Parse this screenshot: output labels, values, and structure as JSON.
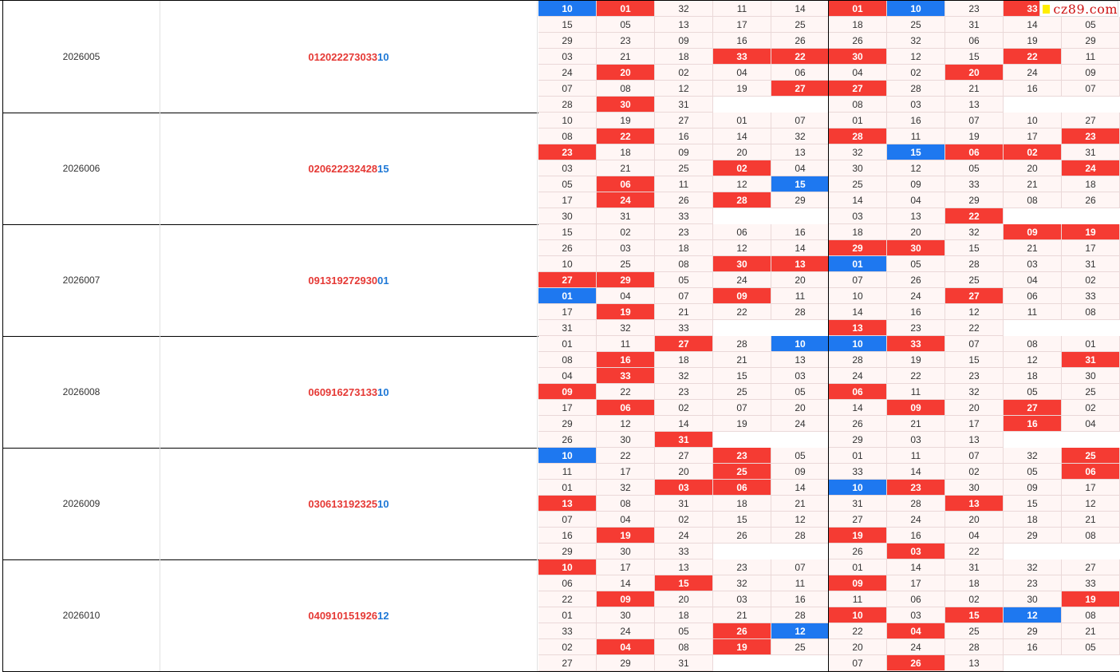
{
  "watermark": {
    "mark_color": "#ffee00",
    "text": "cz89.com"
  },
  "colors": {
    "red": "#f53b33",
    "blue": "#1e78f0",
    "cell_bg": "#fff6f5"
  },
  "rows": [
    {
      "period": "2026005",
      "red_nums": [
        "01",
        "20",
        "22",
        "27",
        "30",
        "33"
      ],
      "blue_num": "10",
      "groups": [
        {
          "cols": [
            [
              "10",
              "15",
              "29",
              "03",
              "24",
              "07",
              "28"
            ],
            [
              "01",
              "05",
              "23",
              "21",
              "20",
              "08",
              "30"
            ],
            [
              "32",
              "13",
              "09",
              "18",
              "02",
              "12",
              "31"
            ],
            [
              "11",
              "17",
              "16",
              "33",
              "04",
              "19",
              ""
            ],
            [
              "14",
              "25",
              "26",
              "22",
              "06",
              "27",
              ""
            ]
          ]
        },
        {
          "cols": [
            [
              "01",
              "18",
              "26",
              "30",
              "04",
              "27",
              "08"
            ],
            [
              "10",
              "25",
              "32",
              "12",
              "02",
              "28",
              "03"
            ],
            [
              "23",
              "31",
              "06",
              "15",
              "20",
              "21",
              "13"
            ],
            [
              "33",
              "14",
              "19",
              "22",
              "24",
              "16",
              ""
            ],
            [
              "",
              "05",
              "29",
              "11",
              "09",
              "07",
              ""
            ]
          ]
        }
      ]
    },
    {
      "period": "2026006",
      "red_nums": [
        "02",
        "06",
        "22",
        "23",
        "24",
        "28"
      ],
      "blue_num": "15",
      "groups": [
        {
          "cols": [
            [
              "10",
              "08",
              "23",
              "03",
              "05",
              "17",
              "30"
            ],
            [
              "19",
              "22",
              "18",
              "21",
              "06",
              "24",
              "31"
            ],
            [
              "27",
              "16",
              "09",
              "25",
              "11",
              "26",
              "33"
            ],
            [
              "01",
              "14",
              "20",
              "02",
              "12",
              "28",
              ""
            ],
            [
              "07",
              "32",
              "13",
              "04",
              "15",
              "29",
              ""
            ]
          ]
        },
        {
          "cols": [
            [
              "01",
              "28",
              "32",
              "30",
              "25",
              "14",
              "03"
            ],
            [
              "16",
              "11",
              "15",
              "12",
              "09",
              "04",
              "13"
            ],
            [
              "07",
              "19",
              "06",
              "05",
              "33",
              "29",
              "22"
            ],
            [
              "10",
              "17",
              "02",
              "20",
              "21",
              "08",
              ""
            ],
            [
              "27",
              "23",
              "31",
              "24",
              "18",
              "26",
              ""
            ]
          ]
        }
      ]
    },
    {
      "period": "2026007",
      "red_nums": [
        "09",
        "13",
        "19",
        "27",
        "29",
        "30"
      ],
      "blue_num": "01",
      "groups": [
        {
          "cols": [
            [
              "15",
              "26",
              "10",
              "27",
              "01",
              "17",
              "31"
            ],
            [
              "02",
              "03",
              "25",
              "29",
              "04",
              "19",
              "32"
            ],
            [
              "23",
              "18",
              "08",
              "05",
              "07",
              "21",
              "33"
            ],
            [
              "06",
              "12",
              "30",
              "24",
              "09",
              "22",
              ""
            ],
            [
              "16",
              "14",
              "13",
              "20",
              "11",
              "28",
              ""
            ]
          ]
        },
        {
          "cols": [
            [
              "18",
              "29",
              "01",
              "07",
              "10",
              "14",
              "13"
            ],
            [
              "20",
              "30",
              "05",
              "26",
              "24",
              "16",
              "23"
            ],
            [
              "32",
              "15",
              "28",
              "25",
              "27",
              "12",
              "22"
            ],
            [
              "09",
              "21",
              "03",
              "04",
              "06",
              "11",
              ""
            ],
            [
              "19",
              "17",
              "31",
              "02",
              "33",
              "08",
              ""
            ]
          ]
        }
      ]
    },
    {
      "period": "2026008",
      "red_nums": [
        "06",
        "09",
        "16",
        "27",
        "31",
        "33"
      ],
      "blue_num": "10",
      "groups": [
        {
          "cols": [
            [
              "01",
              "08",
              "04",
              "09",
              "17",
              "29",
              "26"
            ],
            [
              "11",
              "16",
              "33",
              "22",
              "06",
              "12",
              "30"
            ],
            [
              "27",
              "18",
              "32",
              "23",
              "02",
              "14",
              "31"
            ],
            [
              "28",
              "21",
              "15",
              "25",
              "07",
              "19",
              ""
            ],
            [
              "10",
              "13",
              "03",
              "05",
              "20",
              "24",
              ""
            ]
          ]
        },
        {
          "cols": [
            [
              "10",
              "28",
              "24",
              "06",
              "14",
              "26",
              "29"
            ],
            [
              "33",
              "19",
              "22",
              "11",
              "09",
              "21",
              "03"
            ],
            [
              "07",
              "15",
              "23",
              "32",
              "20",
              "17",
              "13"
            ],
            [
              "08",
              "12",
              "18",
              "05",
              "27",
              "16",
              ""
            ],
            [
              "01",
              "31",
              "30",
              "25",
              "02",
              "04",
              ""
            ]
          ]
        }
      ]
    },
    {
      "period": "2026009",
      "red_nums": [
        "03",
        "06",
        "13",
        "19",
        "23",
        "25"
      ],
      "blue_num": "10",
      "groups": [
        {
          "cols": [
            [
              "10",
              "11",
              "01",
              "13",
              "07",
              "16",
              "29"
            ],
            [
              "22",
              "17",
              "32",
              "08",
              "04",
              "19",
              "30"
            ],
            [
              "27",
              "20",
              "03",
              "31",
              "02",
              "24",
              "33"
            ],
            [
              "23",
              "25",
              "06",
              "18",
              "15",
              "26",
              ""
            ],
            [
              "05",
              "09",
              "14",
              "21",
              "12",
              "28",
              ""
            ]
          ]
        },
        {
          "cols": [
            [
              "01",
              "33",
              "10",
              "31",
              "27",
              "19",
              "26"
            ],
            [
              "11",
              "14",
              "23",
              "28",
              "24",
              "16",
              "03"
            ],
            [
              "07",
              "02",
              "30",
              "13",
              "20",
              "04",
              "22"
            ],
            [
              "32",
              "05",
              "09",
              "15",
              "18",
              "29",
              ""
            ],
            [
              "25",
              "06",
              "17",
              "12",
              "21",
              "08",
              ""
            ]
          ]
        }
      ]
    },
    {
      "period": "2026010",
      "red_nums": [
        "04",
        "09",
        "10",
        "15",
        "19",
        "26"
      ],
      "blue_num": "12",
      "groups": [
        {
          "cols": [
            [
              "10",
              "06",
              "22",
              "01",
              "33",
              "02",
              "27"
            ],
            [
              "17",
              "14",
              "09",
              "30",
              "24",
              "04",
              "29"
            ],
            [
              "13",
              "15",
              "20",
              "18",
              "05",
              "08",
              "31"
            ],
            [
              "23",
              "32",
              "03",
              "21",
              "26",
              "19",
              ""
            ],
            [
              "07",
              "11",
              "16",
              "28",
              "12",
              "25",
              ""
            ]
          ]
        },
        {
          "cols": [
            [
              "01",
              "09",
              "11",
              "10",
              "22",
              "20",
              "07"
            ],
            [
              "14",
              "17",
              "06",
              "03",
              "04",
              "24",
              "26"
            ],
            [
              "31",
              "18",
              "02",
              "15",
              "25",
              "28",
              "13"
            ],
            [
              "32",
              "23",
              "30",
              "12",
              "29",
              "16",
              ""
            ],
            [
              "27",
              "33",
              "19",
              "08",
              "21",
              "05",
              ""
            ]
          ]
        }
      ]
    }
  ]
}
